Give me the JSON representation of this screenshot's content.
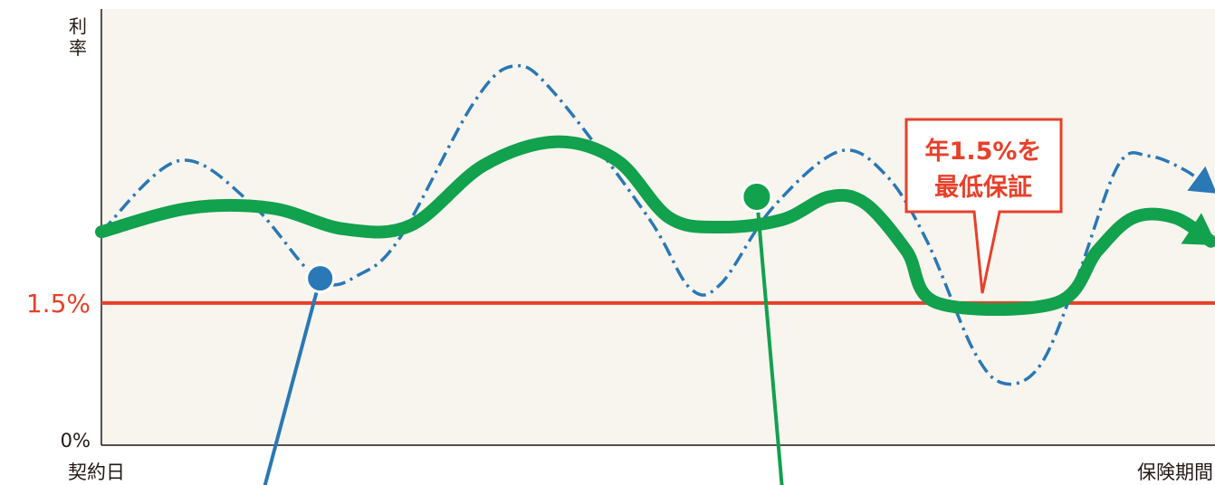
{
  "chart_data": {
    "type": "line",
    "ylabel": "利率",
    "y_ticks": [
      "0%",
      "1.5%"
    ],
    "x_start_label": "契約日",
    "x_end_label": "保険期間",
    "reference_line": {
      "value": 1.5,
      "label": "1.5%",
      "color": "#e8402a"
    },
    "guarantee_callout": {
      "lines": [
        "年1.5%を",
        "最低保証"
      ]
    },
    "grid": false,
    "ylim": [
      0,
      4.6
    ],
    "series": [
      {
        "style": "dash-dot",
        "color": "#2a78b5",
        "points": [
          [
            0,
            2.25
          ],
          [
            0.075,
            3.0
          ],
          [
            0.145,
            2.55
          ],
          [
            0.21,
            1.75
          ],
          [
            0.25,
            1.8
          ],
          [
            0.29,
            2.2
          ],
          [
            0.36,
            3.6
          ],
          [
            0.4,
            4.0
          ],
          [
            0.44,
            3.7
          ],
          [
            0.53,
            2.4
          ],
          [
            0.57,
            1.66
          ],
          [
            0.6,
            1.7
          ],
          [
            0.65,
            2.5
          ],
          [
            0.715,
            3.1
          ],
          [
            0.76,
            2.85
          ],
          [
            0.8,
            2.15
          ],
          [
            0.845,
            1.0
          ],
          [
            0.875,
            0.65
          ],
          [
            0.91,
            0.85
          ],
          [
            0.945,
            1.75
          ],
          [
            0.985,
            2.95
          ],
          [
            1.015,
            3.05
          ],
          [
            1.05,
            2.9
          ],
          [
            1.075,
            2.7
          ]
        ]
      },
      {
        "style": "thick-solid",
        "color": "#12a14c",
        "points": [
          [
            0,
            2.25
          ],
          [
            0.085,
            2.5
          ],
          [
            0.165,
            2.5
          ],
          [
            0.235,
            2.28
          ],
          [
            0.3,
            2.32
          ],
          [
            0.37,
            2.95
          ],
          [
            0.44,
            3.2
          ],
          [
            0.5,
            3.0
          ],
          [
            0.55,
            2.4
          ],
          [
            0.6,
            2.3
          ],
          [
            0.66,
            2.38
          ],
          [
            0.705,
            2.62
          ],
          [
            0.74,
            2.55
          ],
          [
            0.78,
            2.05
          ],
          [
            0.81,
            1.5
          ],
          [
            0.925,
            1.5
          ],
          [
            0.965,
            2.05
          ],
          [
            1.0,
            2.4
          ],
          [
            1.04,
            2.4
          ],
          [
            1.075,
            2.15
          ]
        ]
      }
    ],
    "markers": [
      {
        "series": 0,
        "x": 0.212,
        "y": 1.76
      },
      {
        "series": 1,
        "x": 0.635,
        "y": 2.62
      }
    ]
  }
}
